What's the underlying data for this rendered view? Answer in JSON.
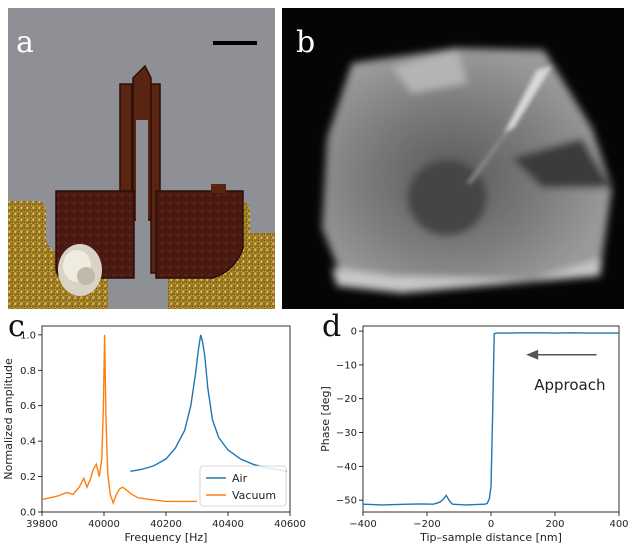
{
  "panel_labels": {
    "a": "a",
    "b": "b",
    "c": "c",
    "d": "d"
  },
  "colors": {
    "air": "#1f77b4",
    "vacuum": "#ff7f0e",
    "arrow": "#555555"
  },
  "chart_data": [
    {
      "id": "c",
      "type": "line",
      "xlabel": "Frequency [Hz]",
      "ylabel": "Normalized amplitude",
      "xlim": [
        39800,
        40600
      ],
      "ylim": [
        0.0,
        1.05
      ],
      "xticks": [
        39800,
        40000,
        40200,
        40400,
        40600
      ],
      "yticks": [
        0.0,
        0.2,
        0.4,
        0.6,
        0.8,
        1.0
      ],
      "xtick_labels": [
        "39800",
        "40000",
        "40200",
        "40400",
        "40600"
      ],
      "ytick_labels": [
        "0.0",
        "0.2",
        "0.4",
        "0.6",
        "0.8",
        "1.0"
      ],
      "legend": {
        "placement": "lower-right",
        "entries": [
          "Air",
          "Vacuum"
        ]
      },
      "series": [
        {
          "name": "Air",
          "color": "#1f77b4",
          "x": [
            40085,
            40120,
            40160,
            40200,
            40230,
            40260,
            40280,
            40295,
            40305,
            40312,
            40318,
            40325,
            40335,
            40350,
            40370,
            40400,
            40440,
            40480,
            40520,
            40560,
            40590
          ],
          "y": [
            0.23,
            0.24,
            0.26,
            0.3,
            0.36,
            0.46,
            0.6,
            0.78,
            0.92,
            1.0,
            0.96,
            0.88,
            0.7,
            0.52,
            0.42,
            0.35,
            0.3,
            0.27,
            0.25,
            0.24,
            0.23
          ]
        },
        {
          "name": "Vacuum",
          "color": "#ff7f0e",
          "x": [
            39800,
            39850,
            39880,
            39900,
            39920,
            39935,
            39945,
            39955,
            39965,
            39975,
            39985,
            39993,
            39998,
            40002,
            40006,
            40012,
            40020,
            40030,
            40040,
            40050,
            40060,
            40075,
            40090,
            40110,
            40150,
            40200,
            40260,
            40300
          ],
          "y": [
            0.07,
            0.09,
            0.11,
            0.1,
            0.14,
            0.19,
            0.14,
            0.18,
            0.24,
            0.27,
            0.2,
            0.3,
            0.6,
            1.0,
            0.55,
            0.22,
            0.1,
            0.05,
            0.1,
            0.13,
            0.14,
            0.12,
            0.1,
            0.08,
            0.07,
            0.06,
            0.06,
            0.06
          ]
        }
      ]
    },
    {
      "id": "d",
      "type": "line",
      "xlabel": "Tip–sample distance [nm]",
      "ylabel": "Phase [deg]",
      "xlim": [
        -400,
        400
      ],
      "ylim": [
        -53.5,
        1.5
      ],
      "xticks": [
        -400,
        -200,
        0,
        200,
        400
      ],
      "yticks": [
        0,
        -10,
        -20,
        -30,
        -40,
        -50
      ],
      "xtick_labels": [
        "−400",
        "−200",
        "0",
        "200",
        "400"
      ],
      "ytick_labels": [
        "0",
        "−10",
        "−20",
        "−30",
        "−40",
        "−50"
      ],
      "annotation": "Approach",
      "series": [
        {
          "color": "#1f77b4",
          "x": [
            -400,
            -370,
            -340,
            -300,
            -260,
            -220,
            -180,
            -160,
            -150,
            -140,
            -130,
            -120,
            -100,
            -80,
            -50,
            -20,
            -12,
            -5,
            0,
            5,
            10,
            15,
            50,
            100,
            150,
            200,
            250,
            300,
            350,
            400
          ],
          "y": [
            -51.2,
            -51.3,
            -51.4,
            -51.3,
            -51.2,
            -51.1,
            -51.2,
            -50.6,
            -49.8,
            -48.6,
            -50.2,
            -51.2,
            -51.3,
            -51.4,
            -51.3,
            -51.2,
            -51.0,
            -49.5,
            -46.0,
            -25.0,
            -0.8,
            -0.6,
            -0.6,
            -0.5,
            -0.5,
            -0.6,
            -0.5,
            -0.6,
            -0.6,
            -0.6
          ]
        }
      ]
    }
  ]
}
